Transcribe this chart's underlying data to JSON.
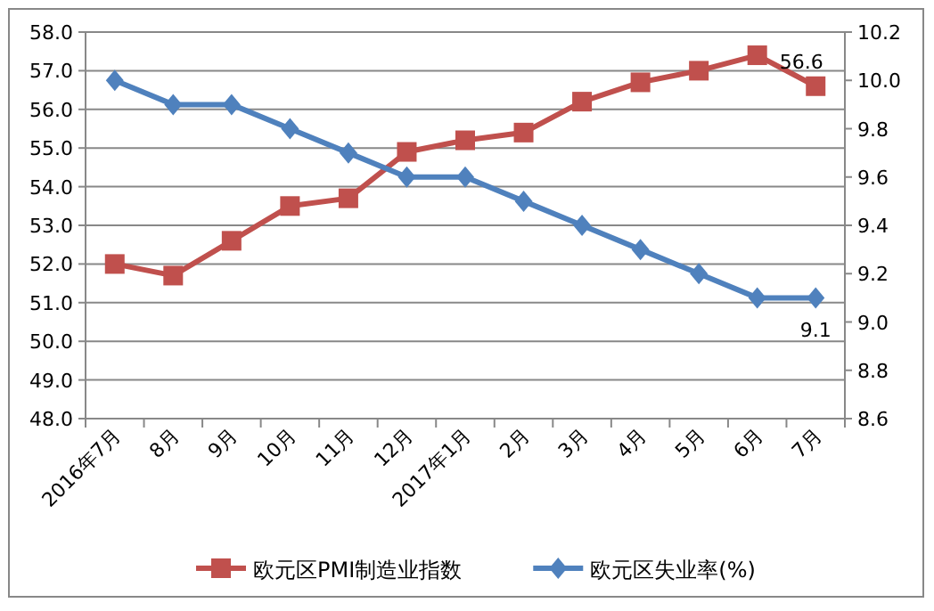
{
  "chart_data": {
    "type": "line",
    "categories": [
      "2016年7月",
      "8月",
      "9月",
      "10月",
      "11月",
      "12月",
      "2017年1月",
      "2月",
      "3月",
      "4月",
      "5月",
      "6月",
      "7月"
    ],
    "series": [
      {
        "name": "欧元区PMI制造业指数",
        "color": "#c0504d",
        "marker": "square",
        "values": [
          52.0,
          51.7,
          52.6,
          53.5,
          53.7,
          54.9,
          55.2,
          55.4,
          56.2,
          56.7,
          57.0,
          57.4,
          56.6
        ],
        "value_labels": [
          null,
          null,
          null,
          null,
          null,
          null,
          null,
          null,
          null,
          null,
          null,
          null,
          "56.6"
        ]
      },
      {
        "name": "欧元区失业率(%)",
        "color": "#4f81bd",
        "marker": "diamond",
        "axis": "y2",
        "values": [
          10.0,
          9.9,
          9.9,
          9.8,
          9.7,
          9.6,
          9.6,
          9.5,
          9.4,
          9.3,
          9.2,
          9.1,
          9.1
        ],
        "value_labels": [
          null,
          null,
          null,
          null,
          null,
          null,
          null,
          null,
          null,
          null,
          null,
          null,
          "9.1"
        ]
      }
    ],
    "ylim": [
      48,
      58
    ],
    "yticks": [
      {
        "value": 48,
        "label": "48.0"
      },
      {
        "value": 49,
        "label": "49.0"
      },
      {
        "value": 50,
        "label": "50.0"
      },
      {
        "value": 51,
        "label": "51.0"
      },
      {
        "value": 52,
        "label": "52.0"
      },
      {
        "value": 53,
        "label": "53.0"
      },
      {
        "value": 54,
        "label": "54.0"
      },
      {
        "value": 55,
        "label": "55.0"
      },
      {
        "value": 56,
        "label": "56.0"
      },
      {
        "value": 57,
        "label": "57.0"
      },
      {
        "value": 58,
        "label": "58.0"
      }
    ],
    "y2lim": [
      8.6,
      10.2
    ],
    "y2ticks": [
      8.6,
      8.8,
      {
        "value": 9.0,
        "label": "9.0"
      },
      9.2,
      9.4,
      9.6,
      9.8,
      {
        "value": 10.0,
        "label": "10.0"
      },
      10.2
    ],
    "grid": "y",
    "legend": "bottom",
    "line_style": "solid"
  }
}
